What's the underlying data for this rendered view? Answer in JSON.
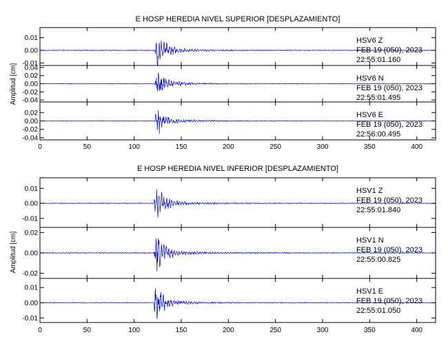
{
  "colors": {
    "trace": "#0000dd",
    "axis": "#000000"
  },
  "chart_data": [
    {
      "type": "line",
      "title": "E HOSP HEREDIA NIVEL SUPERIOR [DESPLAZAMIENTO]",
      "ylabel": "Amplitud [cm]",
      "xlabel": "",
      "xlim": [
        0,
        420
      ],
      "xticks": [
        "0",
        "50",
        "100",
        "150",
        "200",
        "250",
        "300",
        "350",
        "400"
      ],
      "grid": false,
      "panels": [
        {
          "station": "HSV6",
          "component": "Z",
          "date": "FEB 19 (050), 2023",
          "time": "22:55:01.160",
          "ylim": [
            -0.012,
            0.018
          ],
          "yticks": [
            "0.01",
            "0.00",
            "-0.01"
          ],
          "amplitude": 0.018,
          "onset": 122
        },
        {
          "station": "HSV6",
          "component": "N",
          "date": "FEB 19 (050), 2023",
          "time": "22:55:01.495",
          "ylim": [
            -0.045,
            0.045
          ],
          "yticks": [
            "0.04",
            "0.02",
            "0.00",
            "-0.02",
            "-0.04"
          ],
          "amplitude": 0.045,
          "onset": 122
        },
        {
          "station": "HSV6",
          "component": "E",
          "date": "FEB 19 (050), 2023",
          "time": "22:56:00.495",
          "ylim": [
            -0.045,
            0.045
          ],
          "yticks": [
            "0.02",
            "0.00",
            "-0.02",
            "-0.04"
          ],
          "amplitude": 0.045,
          "onset": 122
        }
      ]
    },
    {
      "type": "line",
      "title": "E HOSP HEREDIA NIVEL INFERIOR [DESPLAZAMIENTO]",
      "ylabel": "Amplitud [cm]",
      "xlabel": "",
      "xlim": [
        0,
        420
      ],
      "xticks": [
        "0",
        "50",
        "100",
        "150",
        "200",
        "250",
        "300",
        "350",
        "400"
      ],
      "grid": false,
      "panels": [
        {
          "station": "HSV1",
          "component": "Z",
          "date": "FEB 19 (050), 2023",
          "time": "22:55:01.840",
          "ylim": [
            -0.016,
            0.017
          ],
          "yticks": [
            "0.01",
            "0.00",
            "-0.01"
          ],
          "amplitude": 0.016,
          "onset": 121
        },
        {
          "station": "HSV1",
          "component": "N",
          "date": "FEB 19 (050), 2023",
          "time": "22:55:00.825",
          "ylim": [
            -0.025,
            0.025
          ],
          "yticks": [
            "0.02",
            "0.00",
            "-0.02"
          ],
          "amplitude": 0.025,
          "onset": 121
        },
        {
          "station": "HSV1",
          "component": "E",
          "date": "FEB 19 (050), 2023",
          "time": "22:55:01.050",
          "ylim": [
            -0.013,
            0.016
          ],
          "yticks": [
            "0.01",
            "0.00",
            "-0.01"
          ],
          "amplitude": 0.015,
          "onset": 121
        }
      ]
    }
  ]
}
